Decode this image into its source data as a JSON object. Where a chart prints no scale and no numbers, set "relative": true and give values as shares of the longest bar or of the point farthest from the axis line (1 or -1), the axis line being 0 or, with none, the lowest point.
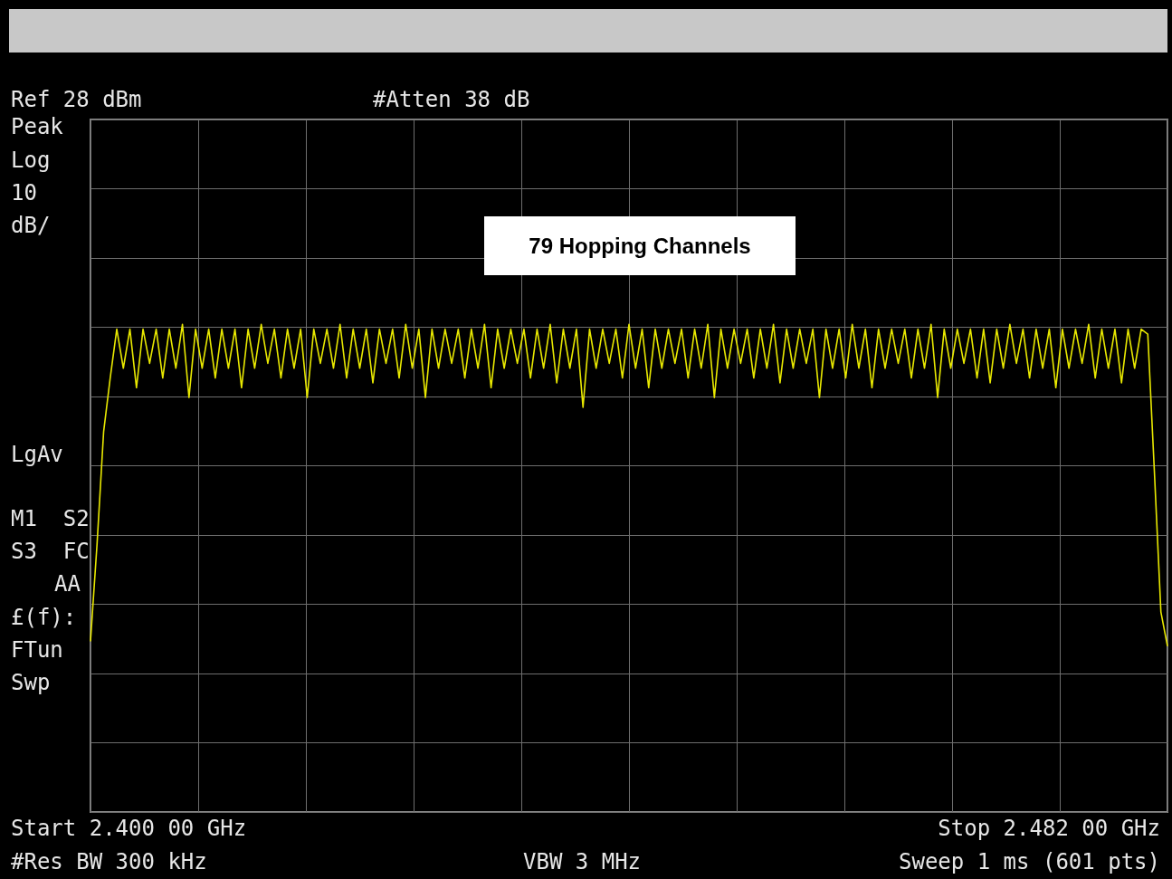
{
  "chart_data": {
    "type": "line",
    "title": "79 Hopping Channels",
    "relative": true,
    "categories": [
      null,
      null,
      null,
      null,
      null,
      null,
      null,
      null,
      null,
      null,
      null,
      null,
      null,
      null,
      null,
      null,
      null,
      null,
      null,
      null,
      null,
      null,
      null,
      null,
      null,
      null,
      null,
      null,
      null,
      null,
      null,
      null,
      null,
      null,
      null,
      null,
      null,
      null,
      null,
      null,
      null,
      null,
      null,
      null,
      null,
      null,
      null,
      null,
      null,
      null,
      null,
      null,
      null,
      null,
      null,
      null,
      null,
      null,
      null,
      null,
      null,
      null,
      null,
      null,
      null,
      null,
      null,
      null,
      null,
      null,
      null,
      null,
      null,
      null,
      null,
      null,
      null,
      null,
      null,
      null,
      null,
      null,
      null,
      null,
      null,
      null,
      null,
      null,
      null,
      null,
      null,
      null,
      null,
      null,
      null,
      null,
      null,
      null,
      null,
      null,
      null,
      null,
      null,
      null,
      null,
      null,
      null,
      null,
      null,
      null,
      null,
      null,
      null,
      null,
      null,
      null,
      null,
      null,
      null,
      null,
      null,
      null,
      null,
      null,
      null,
      null,
      null,
      null,
      null,
      null,
      null,
      null,
      null,
      null,
      null,
      null,
      null,
      null,
      null,
      null,
      null,
      null,
      null,
      null,
      null,
      null,
      null,
      null,
      null,
      null,
      null,
      null,
      null,
      null,
      null,
      null,
      null,
      null,
      null,
      null,
      null,
      null,
      null,
      null,
      null
    ],
    "grid": true,
    "marker": "none",
    "line_style": "solid",
    "annotations": [
      "Ref 28 dBm",
      "#Atten 38 dB",
      "Peak",
      "Log",
      "10",
      "dB/",
      "LgAv",
      "M1  S2",
      "S3  FC",
      "AA",
      "£(f):",
      "FTun",
      "Swp",
      "Start 2.400 00 GHz",
      "Stop 2.482 00 GHz",
      "#Res BW 300 kHz",
      "VBW 3 MHz",
      "Sweep 1 ms (601 pts)"
    ],
    "series": [
      {
        "color": "#e8e800",
        "values": [
          0.35,
          0.55,
          0.78,
          0.89,
          0.99,
          0.91,
          0.99,
          0.87,
          0.99,
          0.92,
          0.99,
          0.89,
          0.99,
          0.91,
          1,
          0.85,
          0.99,
          0.91,
          0.99,
          0.89,
          0.99,
          0.91,
          0.99,
          0.87,
          0.99,
          0.91,
          1,
          0.92,
          0.99,
          0.89,
          0.99,
          0.91,
          0.99,
          0.85,
          0.99,
          0.92,
          0.99,
          0.91,
          1,
          0.89,
          0.99,
          0.91,
          0.99,
          0.88,
          0.99,
          0.92,
          0.99,
          0.89,
          1,
          0.91,
          0.99,
          0.85,
          0.99,
          0.91,
          0.99,
          0.92,
          0.99,
          0.89,
          0.99,
          0.91,
          1,
          0.87,
          0.99,
          0.91,
          0.99,
          0.92,
          0.99,
          0.89,
          0.99,
          0.91,
          1,
          0.88,
          0.99,
          0.91,
          0.99,
          0.83,
          0.99,
          0.91,
          0.99,
          0.92,
          0.99,
          0.89,
          1,
          0.91,
          0.99,
          0.87,
          0.99,
          0.91,
          0.99,
          0.92,
          0.99,
          0.89,
          0.99,
          0.91,
          1,
          0.85,
          0.99,
          0.91,
          0.99,
          0.92,
          0.99,
          0.89,
          0.99,
          0.91,
          1,
          0.88,
          0.99,
          0.91,
          0.99,
          0.92,
          0.99,
          0.85,
          0.99,
          0.91,
          0.99,
          0.89,
          1,
          0.91,
          0.99,
          0.87,
          0.99,
          0.91,
          0.99,
          0.92,
          0.99,
          0.89,
          0.99,
          0.91,
          1,
          0.85,
          0.99,
          0.91,
          0.99,
          0.92,
          0.99,
          0.89,
          0.99,
          0.88,
          0.99,
          0.91,
          1,
          0.92,
          0.99,
          0.89,
          0.99,
          0.91,
          0.99,
          0.87,
          0.99,
          0.91,
          0.99,
          0.92,
          1,
          0.89,
          0.99,
          0.91,
          0.99,
          0.88,
          0.99,
          0.91,
          0.99,
          0.98,
          0.7,
          0.41,
          0.34
        ]
      }
    ]
  }
}
